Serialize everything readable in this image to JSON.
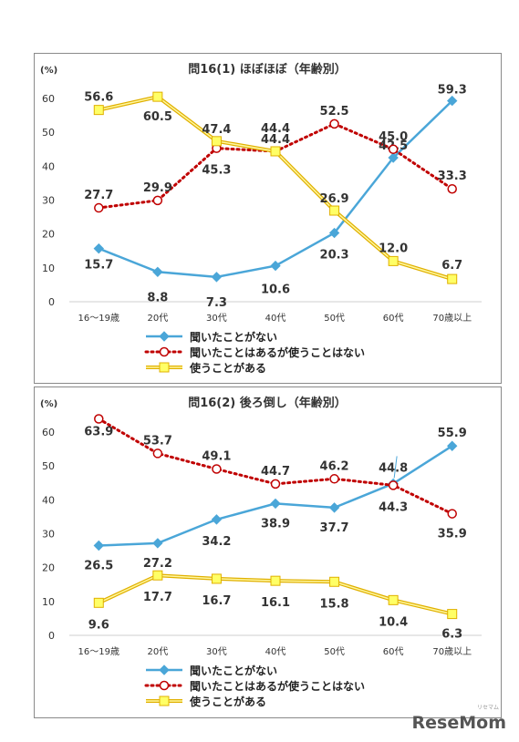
{
  "brand": {
    "logo_text": "ReseMom",
    "logo_small": "リセマム"
  },
  "chart_data": [
    {
      "type": "line",
      "title": "問16(1) ほぼほぼ（年齢別）",
      "ylabel": "(%)",
      "ylim": [
        0,
        60
      ],
      "yticks": [
        "0",
        "10",
        "20",
        "30",
        "40",
        "50",
        "60"
      ],
      "categories": [
        "16～19歳",
        "20代",
        "30代",
        "40代",
        "50代",
        "60代",
        "70歳以上"
      ],
      "legend_position": "bottom-left",
      "series": [
        {
          "name": "聞いたことがない",
          "color": "#4aa6d8",
          "marker": "diamond",
          "values": [
            15.7,
            8.8,
            7.3,
            10.6,
            20.3,
            42.5,
            59.3
          ],
          "labels": [
            "15.7",
            "8.8",
            "7.3",
            "10.6",
            "20.3",
            "42.5",
            "59.3"
          ]
        },
        {
          "name": "聞いたことはあるが使うことはない",
          "color": "#c00000",
          "marker": "circle",
          "values": [
            27.7,
            29.9,
            45.3,
            44.4,
            52.5,
            45.0,
            33.3
          ],
          "labels": [
            "27.7",
            "29.9",
            "45.3",
            "44.4",
            "52.5",
            "45.0",
            "33.3"
          ]
        },
        {
          "name": "使うことがある",
          "color": "#f2c200",
          "marker": "square",
          "values": [
            56.6,
            60.5,
            47.4,
            44.4,
            26.9,
            12.0,
            6.7
          ],
          "labels": [
            "56.6",
            "60.5",
            "47.4",
            "44.4",
            "26.9",
            "12.0",
            "6.7"
          ]
        }
      ]
    },
    {
      "type": "line",
      "title": "問16(2) 後ろ倒し（年齢別）",
      "ylabel": "(%)",
      "ylim": [
        0,
        60
      ],
      "yticks": [
        "0",
        "10",
        "20",
        "30",
        "40",
        "50",
        "60"
      ],
      "categories": [
        "16～19歳",
        "20代",
        "30代",
        "40代",
        "50代",
        "60代",
        "70歳以上"
      ],
      "legend_position": "bottom-left",
      "series": [
        {
          "name": "聞いたことがない",
          "color": "#4aa6d8",
          "marker": "diamond",
          "values": [
            26.5,
            27.2,
            34.2,
            38.9,
            37.7,
            44.8,
            55.9
          ],
          "labels": [
            "26.5",
            "27.2",
            "34.2",
            "38.9",
            "37.7",
            "44.8",
            "55.9"
          ]
        },
        {
          "name": "聞いたことはあるが使うことはない",
          "color": "#c00000",
          "marker": "circle",
          "values": [
            63.9,
            53.7,
            49.1,
            44.7,
            46.2,
            44.3,
            35.9
          ],
          "labels": [
            "63.9",
            "53.7",
            "49.1",
            "44.7",
            "46.2",
            "44.3",
            "35.9"
          ]
        },
        {
          "name": "使うことがある",
          "color": "#f2c200",
          "marker": "square",
          "values": [
            9.6,
            17.7,
            16.7,
            16.1,
            15.8,
            10.4,
            6.3
          ],
          "labels": [
            "9.6",
            "17.7",
            "16.7",
            "16.1",
            "15.8",
            "10.4",
            "6.3"
          ]
        }
      ]
    }
  ]
}
